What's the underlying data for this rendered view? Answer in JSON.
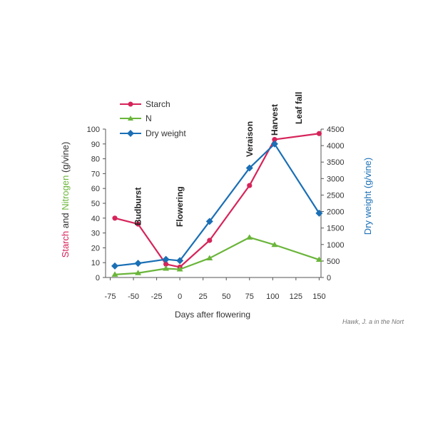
{
  "chart_data": {
    "type": "line",
    "xlabel": "Days after flowering",
    "x_ticks": [
      -75,
      -50,
      -25,
      0,
      25,
      50,
      75,
      100,
      125,
      150
    ],
    "xlim": [
      -80,
      152
    ],
    "ylim_left": [
      0,
      100
    ],
    "y_ticks_left": [
      0,
      10,
      20,
      30,
      40,
      50,
      60,
      70,
      80,
      90,
      100
    ],
    "ylim_right": [
      0,
      4500
    ],
    "y_ticks_right": [
      0,
      500,
      1000,
      1500,
      2000,
      2500,
      3000,
      3500,
      4000,
      4500
    ],
    "ylabel_left": {
      "part1": "Starch",
      "part2": " and ",
      "part3": "Nitrogen",
      "part4": " (g/vine)"
    },
    "ylabel_right": "Dry weight (g/vine)",
    "grid": false,
    "legend_position": "top-left",
    "series": [
      {
        "name": "Starch",
        "color": "#d6245a",
        "marker": "circle",
        "axis": "left",
        "x": [
          -70,
          -45,
          -15,
          0,
          32,
          75,
          102,
          150
        ],
        "y": [
          40,
          36,
          9,
          7,
          25,
          62,
          93,
          97
        ]
      },
      {
        "name": "N",
        "color": "#6ab53a",
        "marker": "triangle",
        "axis": "left",
        "x": [
          -70,
          -45,
          -15,
          0,
          32,
          75,
          102,
          150
        ],
        "y": [
          2,
          3,
          6,
          5.5,
          13,
          27,
          22,
          12
        ]
      },
      {
        "name": "Dry weight",
        "color": "#1a6fb5",
        "marker": "diamond",
        "axis": "right",
        "x": [
          -70,
          -45,
          -15,
          0,
          32,
          75,
          102,
          150
        ],
        "y": [
          350,
          430,
          550,
          510,
          1700,
          3320,
          4050,
          1950
        ]
      }
    ],
    "events": [
      {
        "label": "Budburst",
        "x": -45
      },
      {
        "label": "Flowering",
        "x": 0
      },
      {
        "label": "Veraison",
        "x": 75
      },
      {
        "label": "Harvest",
        "x": 102
      },
      {
        "label": "Leaf fall",
        "x": 128
      }
    ],
    "colors": {
      "starch": "#d6245a",
      "nitrogen": "#6ab53a",
      "dry_weight": "#1a6fb5",
      "axis": "#555555"
    }
  },
  "credit": "Hawk, J. a in the Nort"
}
